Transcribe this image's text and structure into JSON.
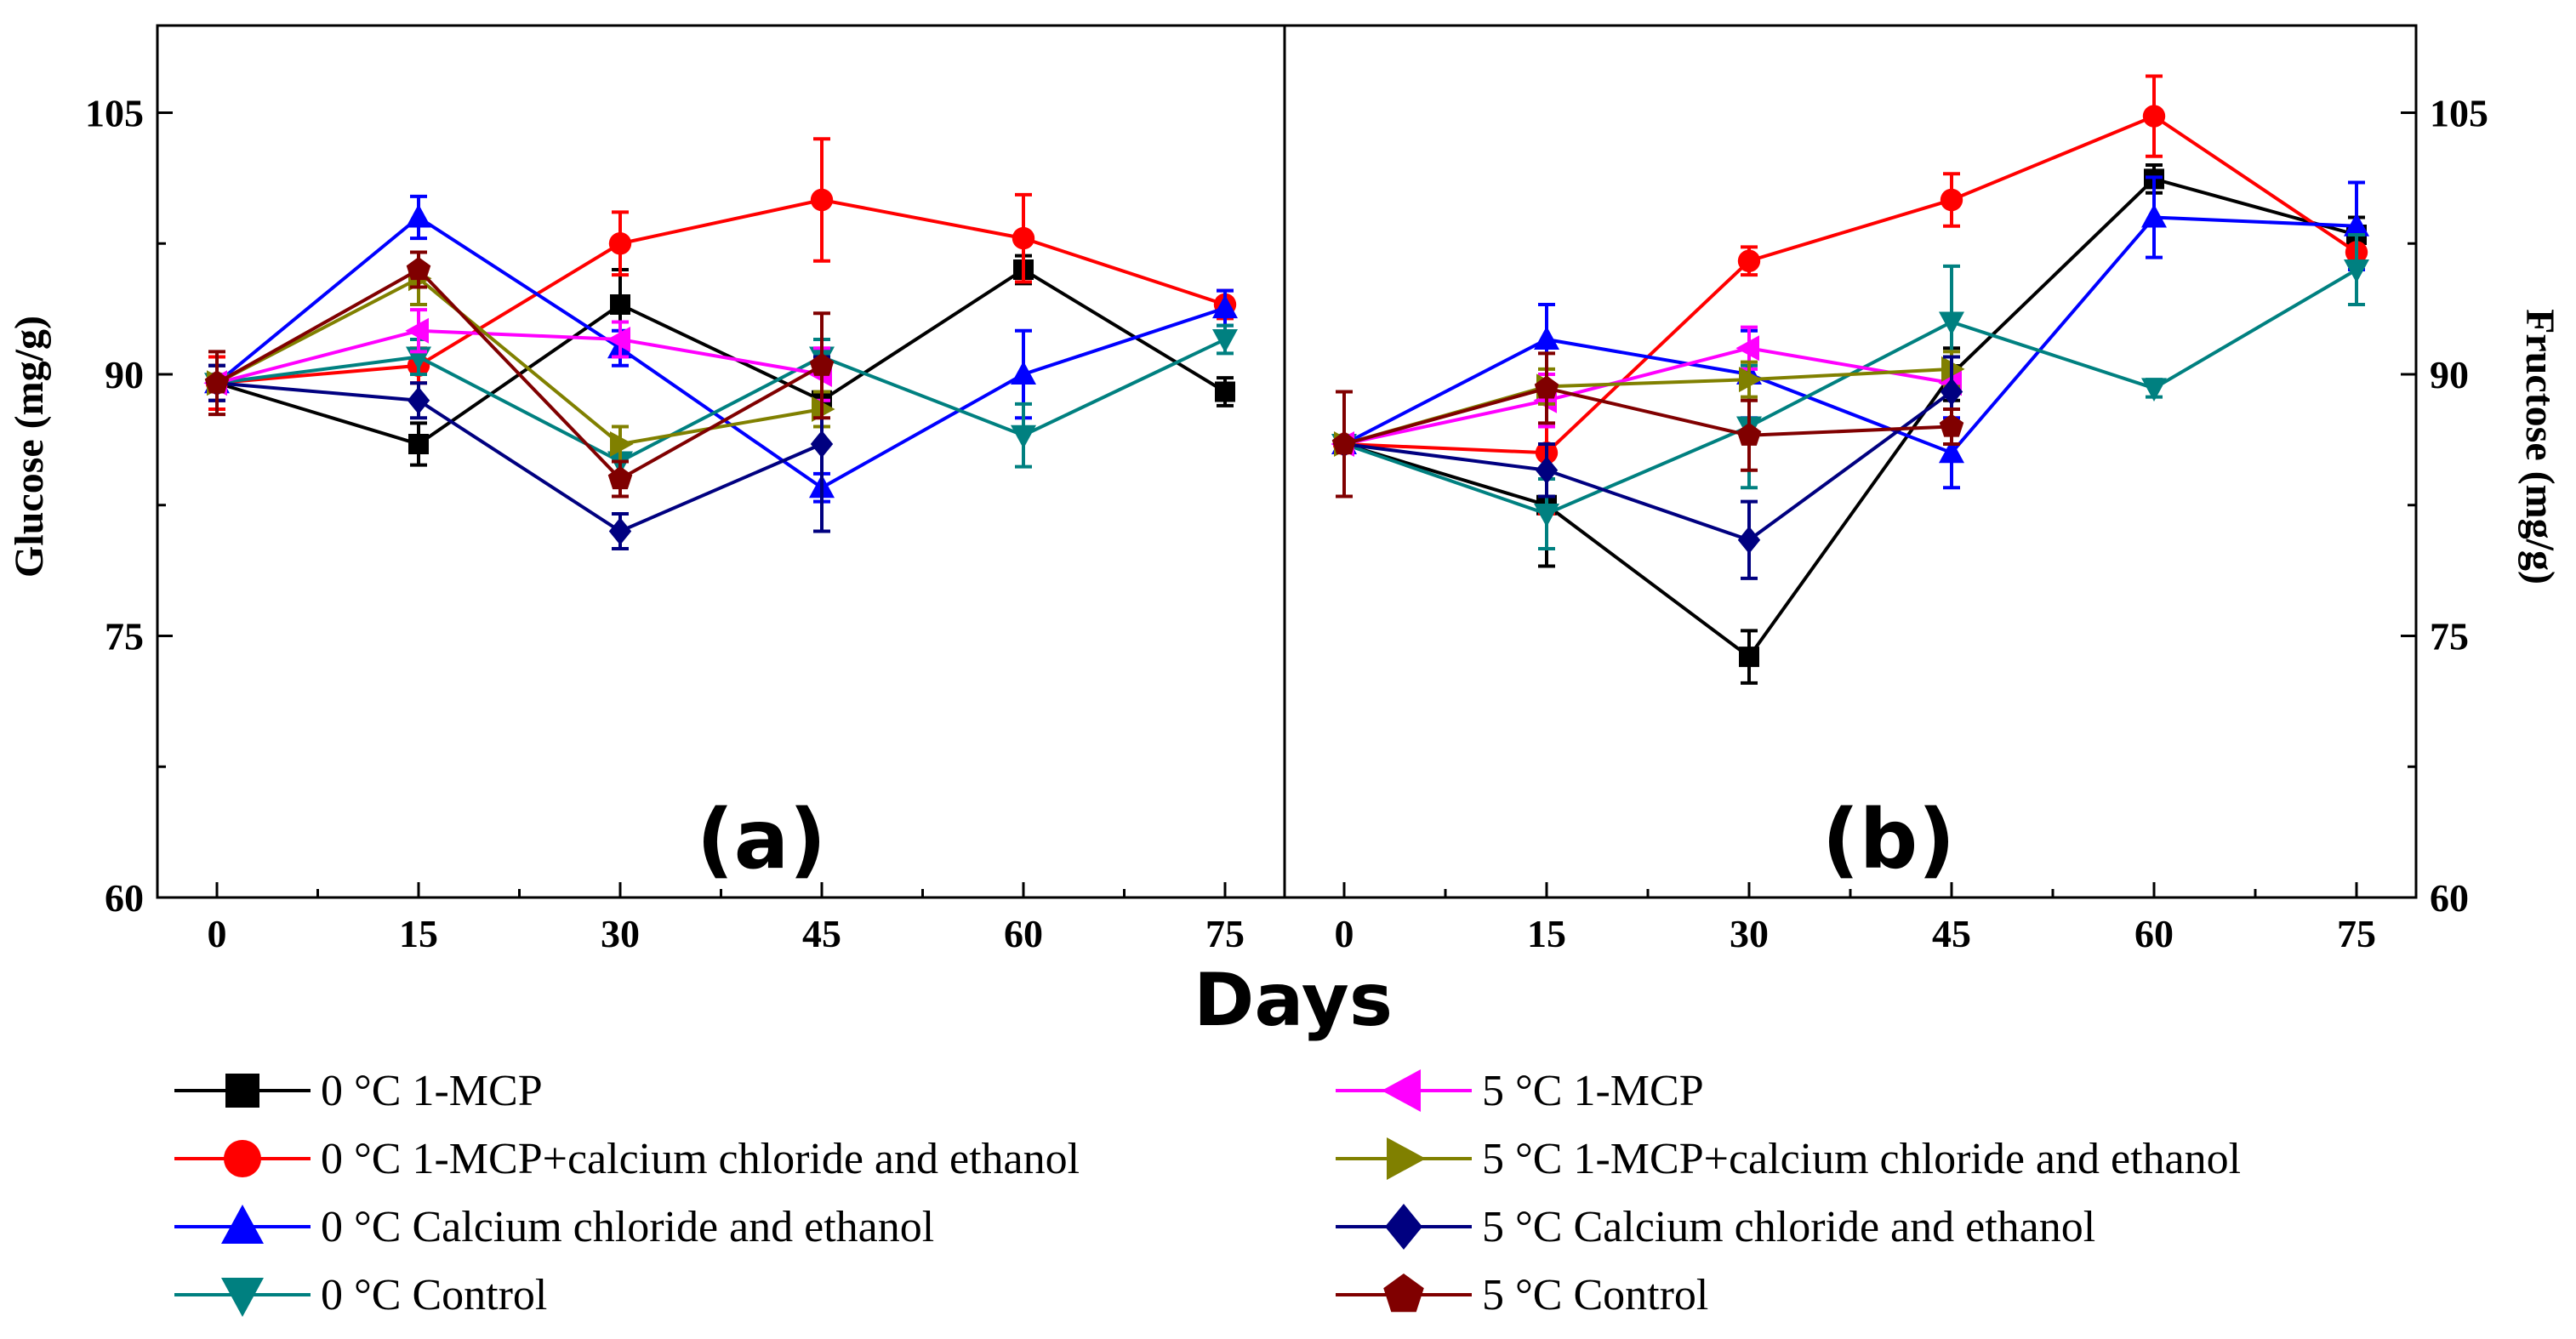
{
  "chart_data": {
    "type": "line",
    "shared_xlabel": "Days",
    "panels": [
      {
        "label": "(a)",
        "ylabel": "Glucose (mg/g)",
        "x": [
          0,
          15,
          30,
          45,
          60,
          75
        ],
        "x_ticks": [
          "0",
          "15",
          "30",
          "45",
          "60",
          "75"
        ],
        "ylim": [
          60,
          110
        ],
        "y_ticks": [
          "60",
          "75",
          "90",
          "105"
        ],
        "series": [
          {
            "name": "0 °C 1-MCP",
            "color": "#000000",
            "marker": "square",
            "values": [
              89.5,
              86.0,
              94.0,
              88.5,
              96.0,
              89.0
            ],
            "errors": [
              1.0,
              1.2,
              2.0,
              1.5,
              0.8,
              0.8
            ]
          },
          {
            "name": "0 °C 1-MCP+calcium chloride and ethanol",
            "color": "#ff0000",
            "marker": "circle",
            "values": [
              89.5,
              90.5,
              97.5,
              100.0,
              97.8,
              94.0
            ],
            "errors": [
              1.5,
              1.0,
              1.8,
              3.5,
              2.5,
              0.8
            ]
          },
          {
            "name": "0 °C Calcium chloride and ethanol",
            "color": "#0000ff",
            "marker": "triangle-up",
            "values": [
              89.5,
              99.0,
              91.5,
              83.5,
              90.0,
              93.8
            ],
            "errors": [
              1.0,
              1.2,
              1.0,
              0.8,
              2.5,
              1.0
            ]
          },
          {
            "name": "0 °C Control",
            "color": "#008080",
            "marker": "triangle-down",
            "values": [
              89.5,
              91.0,
              85.0,
              91.0,
              86.5,
              92.0
            ],
            "errors": [
              1.0,
              1.0,
              1.0,
              1.0,
              1.8,
              0.8
            ]
          },
          {
            "name": "5 °C 1-MCP",
            "color": "#ff00ff",
            "marker": "triangle-left",
            "values": [
              89.5,
              92.5,
              92.0,
              90.0,
              null,
              null
            ],
            "errors": [
              1.0,
              1.2,
              1.0,
              1.5,
              null,
              null
            ]
          },
          {
            "name": "5 °C 1-MCP+calcium chloride and ethanol",
            "color": "#808000",
            "marker": "triangle-right",
            "values": [
              89.5,
              95.5,
              86.0,
              88.0,
              null,
              null
            ],
            "errors": [
              1.0,
              1.5,
              1.0,
              1.0,
              null,
              null
            ]
          },
          {
            "name": "5 °C Calcium chloride and ethanol",
            "color": "#000080",
            "marker": "diamond",
            "values": [
              89.5,
              88.5,
              81.0,
              86.0,
              null,
              null
            ],
            "errors": [
              1.0,
              1.0,
              1.0,
              5.0,
              null,
              null
            ]
          },
          {
            "name": "5 °C Control",
            "color": "#800000",
            "marker": "pentagon",
            "values": [
              89.5,
              96.0,
              84.0,
              90.5,
              null,
              null
            ],
            "errors": [
              1.8,
              1.0,
              1.0,
              3.0,
              null,
              null
            ]
          }
        ]
      },
      {
        "label": "(b)",
        "ylabel": "Fructose (mg/g)",
        "x": [
          0,
          15,
          30,
          45,
          60,
          75
        ],
        "x_ticks": [
          "0",
          "15",
          "30",
          "45",
          "60",
          "75"
        ],
        "ylim": [
          60,
          110
        ],
        "y_ticks": [
          "60",
          "75",
          "90",
          "105"
        ],
        "series": [
          {
            "name": "0 °C 1-MCP",
            "color": "#000000",
            "marker": "square",
            "values": [
              86.0,
              82.5,
              73.8,
              90.0,
              101.2,
              98.0
            ],
            "errors": [
              3.0,
              3.5,
              1.5,
              1.5,
              0.8,
              1.0
            ]
          },
          {
            "name": "0 °C 1-MCP+calcium chloride and ethanol",
            "color": "#ff0000",
            "marker": "circle",
            "values": [
              86.0,
              85.5,
              96.5,
              100.0,
              104.8,
              97.0
            ],
            "errors": [
              3.0,
              3.5,
              0.8,
              1.5,
              2.3,
              1.0
            ]
          },
          {
            "name": "0 °C Calcium chloride and ethanol",
            "color": "#0000ff",
            "marker": "triangle-up",
            "values": [
              86.0,
              92.0,
              90.0,
              85.5,
              99.0,
              98.5
            ],
            "errors": [
              3.0,
              2.0,
              2.5,
              2.0,
              2.3,
              2.5
            ]
          },
          {
            "name": "0 °C Control",
            "color": "#008080",
            "marker": "triangle-down",
            "values": [
              86.0,
              82.0,
              87.0,
              93.0,
              89.2,
              96.0
            ],
            "errors": [
              3.0,
              2.0,
              3.5,
              3.2,
              0.5,
              2.0
            ]
          },
          {
            "name": "5 °C 1-MCP",
            "color": "#ff00ff",
            "marker": "triangle-left",
            "values": [
              86.0,
              88.5,
              91.5,
              89.5,
              null,
              null
            ],
            "errors": [
              3.0,
              1.5,
              1.2,
              1.5,
              null,
              null
            ]
          },
          {
            "name": "5 °C 1-MCP+calcium chloride and ethanol",
            "color": "#808000",
            "marker": "triangle-right",
            "values": [
              86.0,
              89.3,
              89.7,
              90.3,
              null,
              null
            ],
            "errors": [
              3.0,
              1.0,
              1.0,
              1.0,
              null,
              null
            ]
          },
          {
            "name": "5 °C Calcium chloride and ethanol",
            "color": "#000080",
            "marker": "diamond",
            "values": [
              86.0,
              84.5,
              80.5,
              89.0,
              null,
              null
            ],
            "errors": [
              3.0,
              1.5,
              2.2,
              2.0,
              null,
              null
            ]
          },
          {
            "name": "5 °C Control",
            "color": "#800000",
            "marker": "pentagon",
            "values": [
              86.0,
              89.2,
              86.5,
              87.0,
              null,
              null
            ],
            "errors": [
              3.0,
              2.0,
              2.0,
              1.0,
              null,
              null
            ]
          }
        ]
      }
    ],
    "legend": [
      "0 °C 1-MCP",
      "0 °C 1-MCP+calcium chloride and ethanol",
      "0 °C Calcium chloride and ethanol",
      "0 °C Control",
      "5 °C 1-MCP",
      "5 °C 1-MCP+calcium chloride and ethanol",
      "5 °C Calcium chloride and ethanol",
      "5 °C Control"
    ]
  }
}
